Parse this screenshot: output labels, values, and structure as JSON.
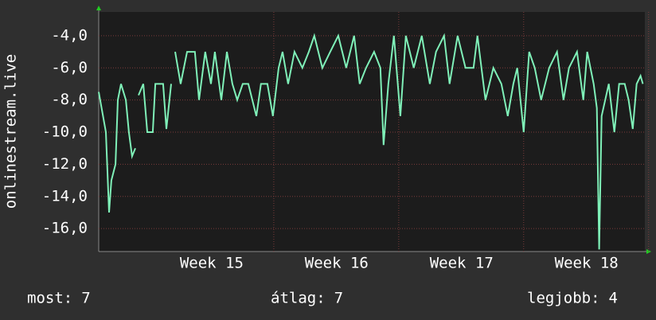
{
  "chart_data": {
    "type": "line",
    "y_label": "onlinestream.live",
    "x": [
      0,
      0.4,
      0.58,
      0.71,
      0.94,
      1.07,
      1.25,
      1.52,
      1.69,
      1.87,
      2.05,
      2.14,
      2.23,
      2.5,
      2.72,
      3.03,
      3.17,
      3.61,
      3.79,
      4.06,
      4.17,
      4.28,
      4.59,
      4.95,
      5.39,
      5.62,
      5.97,
      6.29,
      6.51,
      6.87,
      7.18,
      7.49,
      7.76,
      8.07,
      8.38,
      8.83,
      9.09,
      9.45,
      9.76,
      10.08,
      10.3,
      10.61,
      10.97,
      11.41,
      11.77,
      12.08,
      12.53,
      12.97,
      13.42,
      13.87,
      14.31,
      14.62,
      14.98,
      15.43,
      15.78,
      15.96,
      16.23,
      16.54,
      16.9,
      17.21,
      17.65,
      18.1,
      18.55,
      18.9,
      19.35,
      19.66,
      20.11,
      20.55,
      21.0,
      21.22,
      21.67,
      22.11,
      22.56,
      22.92,
      23.23,
      23.45,
      23.81,
      24.12,
      24.43,
      24.79,
      25.24,
      25.68,
      26.04,
      26.35,
      26.8,
      27.15,
      27.37,
      27.73,
      27.91,
      28.04,
      28.18,
      28.58,
      28.89,
      29.16,
      29.47,
      29.69,
      29.92,
      30.14,
      30.36,
      30.49
    ],
    "series": [
      {
        "name": "onlinestream.live",
        "color": "#7ff0b8",
        "values": [
          -7.5,
          -10,
          -15,
          -13,
          -12,
          -8,
          -7,
          -8,
          -10,
          -11.5,
          -11,
          null,
          -7.7,
          -7,
          -10,
          -10,
          -7,
          -7,
          -9.8,
          -7,
          null,
          -5,
          -7,
          -5,
          -5,
          -8,
          -5,
          -7,
          -5,
          -8,
          -5,
          -7,
          -8,
          -7,
          -7,
          -9,
          -7,
          -7,
          -9,
          -6,
          -5,
          -7,
          -5,
          -6,
          -5,
          -4,
          -6,
          -5,
          -4,
          -6,
          -4,
          -7,
          -6,
          -5,
          -6,
          -10.8,
          -7,
          -4,
          -9,
          -4,
          -6,
          -4,
          -7,
          -5,
          -4,
          -7,
          -4,
          -6,
          -6,
          -4,
          -8,
          -6,
          -7,
          -9,
          -7,
          -6,
          -10,
          -5,
          -6,
          -8,
          -6,
          -5,
          -8,
          -6,
          -5,
          -8,
          -5,
          -7,
          -8.5,
          -17.3,
          -9,
          -7,
          -10,
          -7,
          -7,
          -8,
          -9.8,
          -7,
          -6.5,
          -7
        ]
      }
    ],
    "xlim": [
      0,
      30.6
    ],
    "xticks": [
      {
        "value": 6.33,
        "label": "Week 15"
      },
      {
        "value": 13.33,
        "label": "Week 16"
      },
      {
        "value": 20.33,
        "label": "Week 17"
      },
      {
        "value": 27.33,
        "label": "Week 18"
      }
    ],
    "ylim": [
      -17.43,
      -2.52
    ],
    "yticks": [
      {
        "value": -4,
        "label": "-4,0"
      },
      {
        "value": -6,
        "label": "-6,0"
      },
      {
        "value": -8,
        "label": "-8,0"
      },
      {
        "value": -10,
        "label": "-10,0"
      },
      {
        "value": -12,
        "label": "-12,0"
      },
      {
        "value": -14,
        "label": "-14,0"
      },
      {
        "value": -16,
        "label": "-16,0"
      }
    ],
    "grid": true,
    "stats": [
      {
        "label": "most:",
        "value": 7
      },
      {
        "label": "átlag:",
        "value": 7
      },
      {
        "label": "legjobb:",
        "value": 4
      }
    ]
  }
}
